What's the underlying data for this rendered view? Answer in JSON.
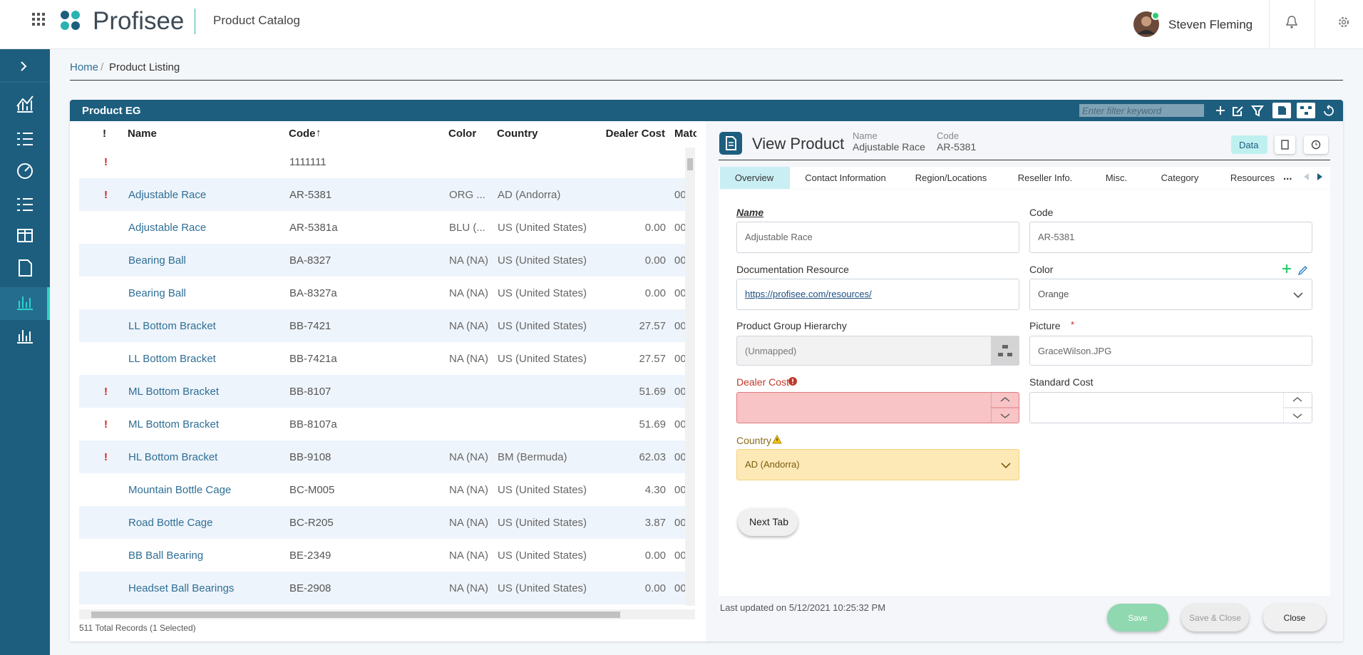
{
  "header": {
    "brand": "Profisee",
    "app_title": "Product Catalog",
    "user": "Steven Fleming"
  },
  "breadcrumb": [
    "Home",
    "Product Listing"
  ],
  "grid": {
    "title": "Product EG",
    "filter_placeholder": "Enter filter keyword",
    "columns": [
      "!",
      "Name",
      "Code",
      "Color",
      "Country",
      "Dealer Cost",
      "Matc"
    ],
    "rows": [
      {
        "flag": "!",
        "code": "1111111"
      },
      {
        "flag": "!",
        "name": "Adjustable Race",
        "code": "AR-5381",
        "color": "ORG ...",
        "country": "AD (Andorra)",
        "match": "00"
      },
      {
        "name": "Adjustable Race",
        "code": "AR-5381a",
        "color": "BLU (...",
        "country": "US (United States)",
        "dealer_cost": "0.00",
        "match": "00"
      },
      {
        "name": "Bearing Ball",
        "code": "BA-8327",
        "color": "NA (NA)",
        "country": "US (United States)",
        "dealer_cost": "0.00",
        "match": "00"
      },
      {
        "name": "Bearing Ball",
        "code": "BA-8327a",
        "color": "NA (NA)",
        "country": "US (United States)",
        "dealer_cost": "0.00",
        "match": "00"
      },
      {
        "name": "LL Bottom Bracket",
        "code": "BB-7421",
        "color": "NA (NA)",
        "country": "US (United States)",
        "dealer_cost": "27.57",
        "match": "00"
      },
      {
        "name": "LL Bottom Bracket",
        "code": "BB-7421a",
        "color": "NA (NA)",
        "country": "US (United States)",
        "dealer_cost": "27.57",
        "match": "00"
      },
      {
        "flag": "!",
        "name": "ML Bottom Bracket",
        "code": "BB-8107",
        "dealer_cost": "51.69",
        "match": "00"
      },
      {
        "flag": "!",
        "name": "ML Bottom Bracket",
        "code": "BB-8107a",
        "dealer_cost": "51.69",
        "match": "00"
      },
      {
        "flag": "!",
        "name": "HL Bottom Bracket",
        "code": "BB-9108",
        "color": "NA (NA)",
        "country": "BM (Bermuda)",
        "dealer_cost": "62.03",
        "match": "00"
      },
      {
        "name": "Mountain Bottle Cage",
        "code": "BC-M005",
        "color": "NA (NA)",
        "country": "US (United States)",
        "dealer_cost": "4.30",
        "match": "00"
      },
      {
        "name": "Road Bottle Cage",
        "code": "BC-R205",
        "color": "NA (NA)",
        "country": "US (United States)",
        "dealer_cost": "3.87",
        "match": "00"
      },
      {
        "name": "BB Ball Bearing",
        "code": "BE-2349",
        "color": "NA (NA)",
        "country": "US (United States)",
        "dealer_cost": "0.00",
        "match": "00"
      },
      {
        "name": "Headset Ball Bearings",
        "code": "BE-2908",
        "color": "NA (NA)",
        "country": "US (United States)",
        "dealer_cost": "0.00",
        "match": "00"
      }
    ],
    "footer": "511 Total Records (1 Selected)"
  },
  "form": {
    "title": "View Product",
    "meta": [
      {
        "label": "Name",
        "value": "Adjustable Race"
      },
      {
        "label": "Code",
        "value": "AR-5381"
      }
    ],
    "data_button": "Data",
    "tabs": [
      "Overview",
      "Contact Information",
      "Region/Locations",
      "Reseller Info.",
      "Misc.",
      "Category",
      "Resources"
    ],
    "tab_more": "...",
    "fields": {
      "name": {
        "label": "Name",
        "value": "Adjustable Race"
      },
      "code": {
        "label": "Code",
        "value": "AR-5381"
      },
      "doc": {
        "label": "Documentation Resource",
        "value": "https://profisee.com/resources/"
      },
      "color": {
        "label": "Color",
        "value": "Orange"
      },
      "hierarchy": {
        "label": "Product Group Hierarchy",
        "value": "(Unmapped)"
      },
      "picture": {
        "label": "Picture",
        "required_mark": "*",
        "value": "GraceWilson.JPG"
      },
      "dealer_cost": {
        "label": "Dealer Cost"
      },
      "standard_cost": {
        "label": "Standard Cost"
      },
      "country": {
        "label": "Country",
        "value": "AD (Andorra)"
      }
    },
    "next_tab": "Next Tab",
    "last_updated": "Last updated on 5/12/2021 10:25:32 PM",
    "actions": [
      "Save",
      "Save & Close",
      "Close"
    ]
  }
}
